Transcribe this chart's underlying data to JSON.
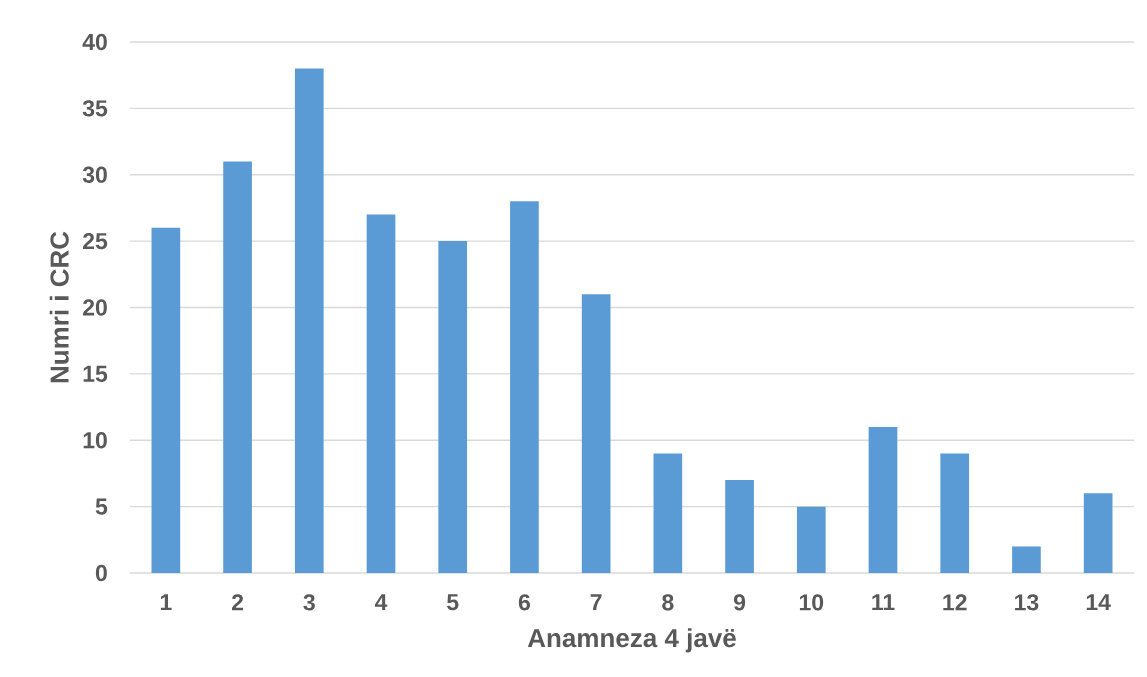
{
  "chart_data": {
    "type": "bar",
    "xlabel": "Anamneza 4 javë",
    "ylabel": "Numri i CRC",
    "categories": [
      "1",
      "2",
      "3",
      "4",
      "5",
      "6",
      "7",
      "8",
      "9",
      "10",
      "11",
      "12",
      "13",
      "14"
    ],
    "values": [
      26,
      31,
      38,
      27,
      25,
      28,
      21,
      9,
      7,
      5,
      11,
      9,
      2,
      6
    ],
    "color": "#5b9bd5",
    "ylim": [
      0,
      40
    ],
    "yticks": [
      0,
      5,
      10,
      15,
      20,
      25,
      30,
      35,
      40
    ],
    "grid": "y"
  }
}
